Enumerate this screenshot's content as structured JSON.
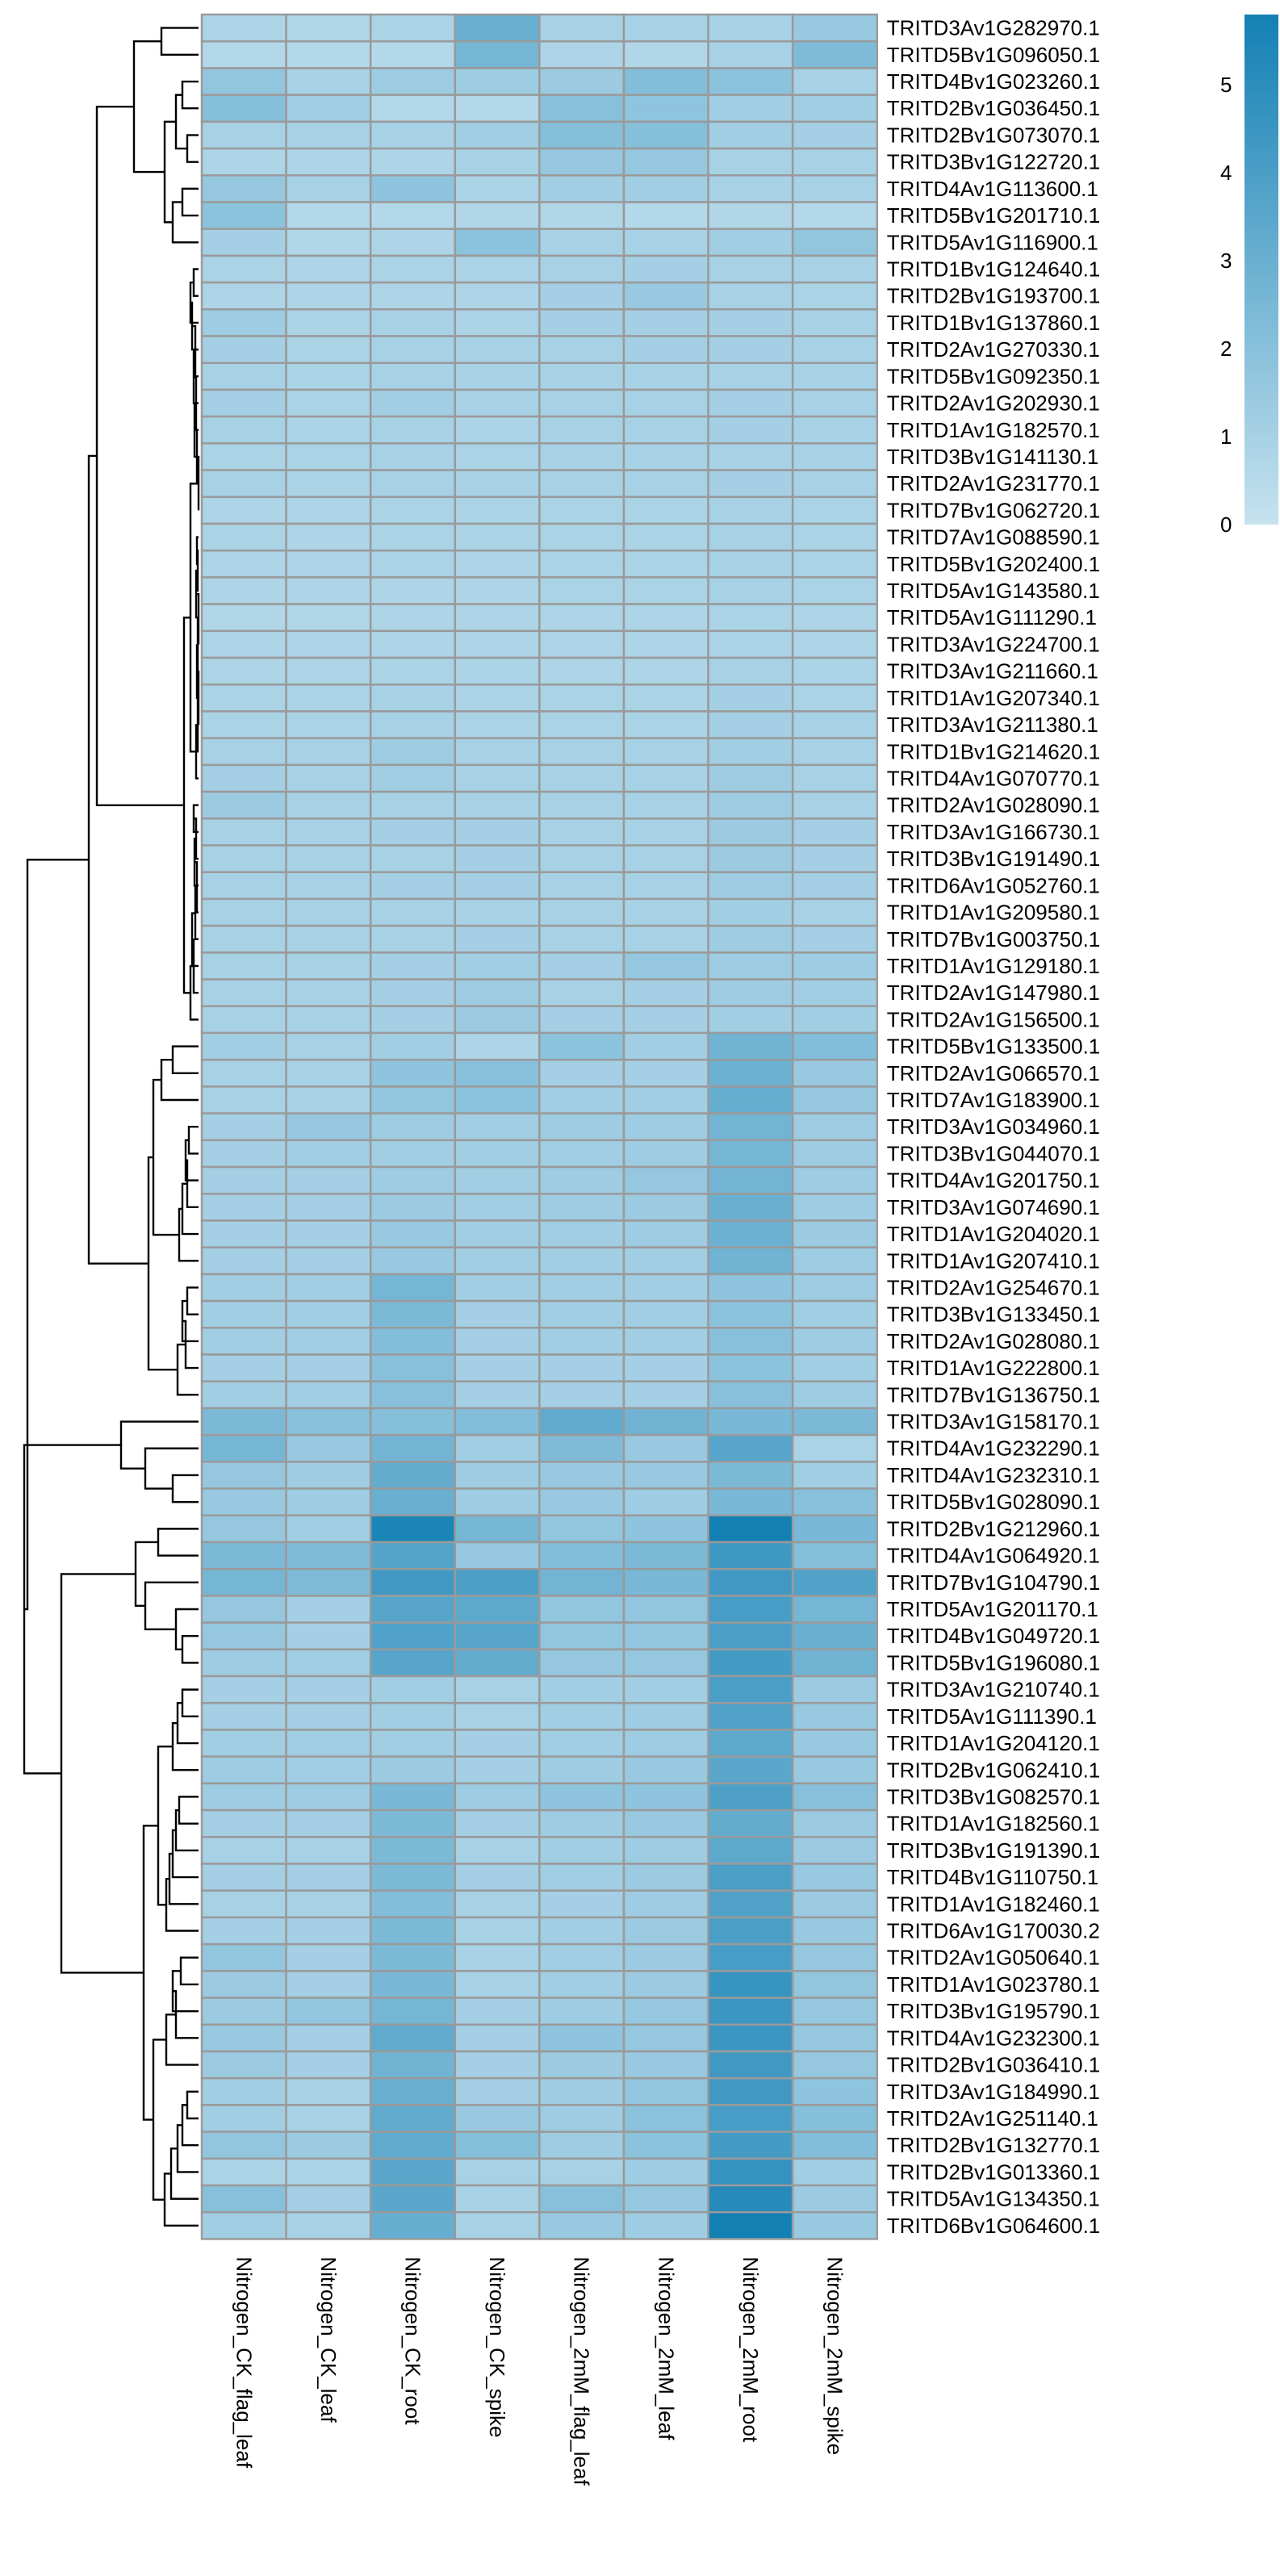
{
  "chart_data": {
    "type": "heatmap",
    "title": "",
    "columns": [
      "Nitrogen_CK_flag_leaf",
      "Nitrogen_CK_leaf",
      "Nitrogen_CK_root",
      "Nitrogen_CK_spike",
      "Nitrogen_2mM_flag_leaf",
      "Nitrogen_2mM_leaf",
      "Nitrogen_2mM_root",
      "Nitrogen_2mM_spike"
    ],
    "rows": [
      "TRITD3Av1G282970.1",
      "TRITD5Bv1G096050.1",
      "TRITD4Bv1G023260.1",
      "TRITD2Bv1G036450.1",
      "TRITD2Bv1G073070.1",
      "TRITD3Bv1G122720.1",
      "TRITD4Av1G113600.1",
      "TRITD5Bv1G201710.1",
      "TRITD5Av1G116900.1",
      "TRITD1Bv1G124640.1",
      "TRITD2Bv1G193700.1",
      "TRITD1Bv1G137860.1",
      "TRITD2Av1G270330.1",
      "TRITD5Bv1G092350.1",
      "TRITD2Av1G202930.1",
      "TRITD1Av1G182570.1",
      "TRITD3Bv1G141130.1",
      "TRITD2Av1G231770.1",
      "TRITD7Bv1G062720.1",
      "TRITD7Av1G088590.1",
      "TRITD5Bv1G202400.1",
      "TRITD5Av1G143580.1",
      "TRITD5Av1G111290.1",
      "TRITD3Av1G224700.1",
      "TRITD3Av1G211660.1",
      "TRITD1Av1G207340.1",
      "TRITD3Av1G211380.1",
      "TRITD1Bv1G214620.1",
      "TRITD4Av1G070770.1",
      "TRITD2Av1G028090.1",
      "TRITD3Av1G166730.1",
      "TRITD3Bv1G191490.1",
      "TRITD6Av1G052760.1",
      "TRITD1Av1G209580.1",
      "TRITD7Bv1G003750.1",
      "TRITD1Av1G129180.1",
      "TRITD2Av1G147980.1",
      "TRITD2Av1G156500.1",
      "TRITD5Bv1G133500.1",
      "TRITD2Av1G066570.1",
      "TRITD7Av1G183900.1",
      "TRITD3Av1G034960.1",
      "TRITD3Bv1G044070.1",
      "TRITD4Av1G201750.1",
      "TRITD3Av1G074690.1",
      "TRITD1Av1G204020.1",
      "TRITD1Av1G207410.1",
      "TRITD2Av1G254670.1",
      "TRITD3Bv1G133450.1",
      "TRITD2Av1G028080.1",
      "TRITD1Av1G222800.1",
      "TRITD7Bv1G136750.1",
      "TRITD3Av1G158170.1",
      "TRITD4Av1G232290.1",
      "TRITD4Av1G232310.1",
      "TRITD5Bv1G028090.1",
      "TRITD2Bv1G212960.1",
      "TRITD4Av1G064920.1",
      "TRITD7Bv1G104790.1",
      "TRITD5Av1G201170.1",
      "TRITD4Bv1G049720.1",
      "TRITD5Bv1G196080.1",
      "TRITD3Av1G210740.1",
      "TRITD5Av1G111390.1",
      "TRITD1Av1G204120.1",
      "TRITD2Bv1G062410.1",
      "TRITD3Bv1G082570.1",
      "TRITD1Av1G182560.1",
      "TRITD3Bv1G191390.1",
      "TRITD4Bv1G110750.1",
      "TRITD1Av1G182460.1",
      "TRITD6Av1G170030.2",
      "TRITD2Av1G050640.1",
      "TRITD1Av1G023780.1",
      "TRITD3Bv1G195790.1",
      "TRITD4Av1G232300.1",
      "TRITD2Bv1G036410.1",
      "TRITD3Av1G184990.1",
      "TRITD2Av1G251140.1",
      "TRITD2Bv1G132770.1",
      "TRITD2Bv1G013360.1",
      "TRITD5Av1G134350.1",
      "TRITD6Bv1G064600.1"
    ],
    "values": [
      [
        0.8,
        0.7,
        0.9,
        3.0,
        1.0,
        1.0,
        1.0,
        1.5
      ],
      [
        0.6,
        0.6,
        0.6,
        2.6,
        0.8,
        0.7,
        1.0,
        2.3
      ],
      [
        1.7,
        1.0,
        1.3,
        1.3,
        1.4,
        2.2,
        1.9,
        1.0
      ],
      [
        2.1,
        1.2,
        0.6,
        0.6,
        2.0,
        1.8,
        1.2,
        1.2
      ],
      [
        1.0,
        1.0,
        1.0,
        1.2,
        2.1,
        2.1,
        1.2,
        1.1
      ],
      [
        0.8,
        0.8,
        0.8,
        1.0,
        1.6,
        1.6,
        1.0,
        1.0
      ],
      [
        1.6,
        1.0,
        1.8,
        0.9,
        1.2,
        1.2,
        1.0,
        1.0
      ],
      [
        1.9,
        0.6,
        0.6,
        0.7,
        0.7,
        0.6,
        0.7,
        0.6
      ],
      [
        1.1,
        0.7,
        0.8,
        1.9,
        1.0,
        1.0,
        1.2,
        1.7
      ],
      [
        0.9,
        0.8,
        0.9,
        0.9,
        1.0,
        1.1,
        1.0,
        1.0
      ],
      [
        0.8,
        0.8,
        0.8,
        0.8,
        1.1,
        1.5,
        1.0,
        0.9
      ],
      [
        1.3,
        0.9,
        1.0,
        0.9,
        1.1,
        1.1,
        1.1,
        1.0
      ],
      [
        1.1,
        0.9,
        1.0,
        1.0,
        1.0,
        1.1,
        1.1,
        1.0
      ],
      [
        1.0,
        0.9,
        1.0,
        1.0,
        1.0,
        1.0,
        1.0,
        1.0
      ],
      [
        1.1,
        0.9,
        1.2,
        1.0,
        1.0,
        1.0,
        1.1,
        1.0
      ],
      [
        1.0,
        0.9,
        1.0,
        0.9,
        1.0,
        1.0,
        1.1,
        1.0
      ],
      [
        0.9,
        0.9,
        1.0,
        0.9,
        1.0,
        1.0,
        1.0,
        1.0
      ],
      [
        1.0,
        0.9,
        1.0,
        1.0,
        1.0,
        1.0,
        1.1,
        1.0
      ],
      [
        0.8,
        0.8,
        0.9,
        0.9,
        0.9,
        0.9,
        1.0,
        0.9
      ],
      [
        0.9,
        0.8,
        0.9,
        0.9,
        0.9,
        0.9,
        1.0,
        0.9
      ],
      [
        0.8,
        0.8,
        0.9,
        0.8,
        0.9,
        0.9,
        1.0,
        0.9
      ],
      [
        0.8,
        0.8,
        0.8,
        0.8,
        0.9,
        0.9,
        1.0,
        0.9
      ],
      [
        0.7,
        0.7,
        0.8,
        0.8,
        0.8,
        0.8,
        0.9,
        0.8
      ],
      [
        0.8,
        0.8,
        0.8,
        0.8,
        0.8,
        0.8,
        0.9,
        0.8
      ],
      [
        0.8,
        0.8,
        0.9,
        0.9,
        0.8,
        0.8,
        1.0,
        0.9
      ],
      [
        0.9,
        0.9,
        1.0,
        0.9,
        0.9,
        0.9,
        1.1,
        0.9
      ],
      [
        0.9,
        0.9,
        1.0,
        0.9,
        0.9,
        0.9,
        1.1,
        1.0
      ],
      [
        1.0,
        1.0,
        1.3,
        1.0,
        1.0,
        1.0,
        1.2,
        1.0
      ],
      [
        1.1,
        1.0,
        1.2,
        1.0,
        1.0,
        1.0,
        1.3,
        1.0
      ],
      [
        1.4,
        1.0,
        1.0,
        1.0,
        1.0,
        1.0,
        1.3,
        1.0
      ],
      [
        1.0,
        1.0,
        1.1,
        1.1,
        1.0,
        1.0,
        1.4,
        1.1
      ],
      [
        1.0,
        1.0,
        1.0,
        1.1,
        1.0,
        1.0,
        1.4,
        1.1
      ],
      [
        1.0,
        1.0,
        1.1,
        1.1,
        1.0,
        1.0,
        1.3,
        1.1
      ],
      [
        1.0,
        1.0,
        1.0,
        1.0,
        1.0,
        1.0,
        1.2,
        1.0
      ],
      [
        1.0,
        1.0,
        1.0,
        1.1,
        1.0,
        1.0,
        1.3,
        1.1
      ],
      [
        1.0,
        1.0,
        1.1,
        1.2,
        1.1,
        1.6,
        1.3,
        1.3
      ],
      [
        1.0,
        1.0,
        1.1,
        1.3,
        1.0,
        1.1,
        1.3,
        1.2
      ],
      [
        1.0,
        1.0,
        1.1,
        1.4,
        1.1,
        1.1,
        1.2,
        1.2
      ],
      [
        1.2,
        1.0,
        1.2,
        0.8,
        1.9,
        1.2,
        2.8,
        2.2
      ],
      [
        1.0,
        1.0,
        1.8,
        2.0,
        1.1,
        1.1,
        2.9,
        1.5
      ],
      [
        1.0,
        1.0,
        1.7,
        1.9,
        1.2,
        1.2,
        3.1,
        1.6
      ],
      [
        1.1,
        1.6,
        1.3,
        1.2,
        1.3,
        1.3,
        2.7,
        1.3
      ],
      [
        1.1,
        1.2,
        1.2,
        1.2,
        1.2,
        1.3,
        2.6,
        1.3
      ],
      [
        1.1,
        1.1,
        1.3,
        1.2,
        1.3,
        1.6,
        2.7,
        1.3
      ],
      [
        1.1,
        1.1,
        1.4,
        1.2,
        1.3,
        1.4,
        3.0,
        1.3
      ],
      [
        1.1,
        1.1,
        1.5,
        1.2,
        1.2,
        1.3,
        2.9,
        1.4
      ],
      [
        1.1,
        1.1,
        1.5,
        1.2,
        1.2,
        1.2,
        2.8,
        1.3
      ],
      [
        1.2,
        1.2,
        2.6,
        1.2,
        1.2,
        1.2,
        1.8,
        1.3
      ],
      [
        1.2,
        1.2,
        2.4,
        1.1,
        1.2,
        1.2,
        1.9,
        1.2
      ],
      [
        1.2,
        1.2,
        2.2,
        1.1,
        1.2,
        1.2,
        2.0,
        1.3
      ],
      [
        1.1,
        1.1,
        2.0,
        1.1,
        1.1,
        1.1,
        1.9,
        1.2
      ],
      [
        1.2,
        1.2,
        2.0,
        1.1,
        1.1,
        1.1,
        2.0,
        1.3
      ],
      [
        2.4,
        2.0,
        2.1,
        2.2,
        3.3,
        2.8,
        2.5,
        2.4
      ],
      [
        2.6,
        1.5,
        2.7,
        1.2,
        2.3,
        1.5,
        3.6,
        0.9
      ],
      [
        1.6,
        1.3,
        3.2,
        1.3,
        1.5,
        1.5,
        2.4,
        1.2
      ],
      [
        1.5,
        1.3,
        3.0,
        1.3,
        1.5,
        1.3,
        2.5,
        2.0
      ],
      [
        1.6,
        1.2,
        5.5,
        2.6,
        1.7,
        1.8,
        5.8,
        2.5
      ],
      [
        2.4,
        2.3,
        3.7,
        1.6,
        2.2,
        2.4,
        4.4,
        2.1
      ],
      [
        2.6,
        2.3,
        4.3,
        4.0,
        2.7,
        2.5,
        4.3,
        3.8
      ],
      [
        1.6,
        1.1,
        3.6,
        3.4,
        1.7,
        1.7,
        4.1,
        2.6
      ],
      [
        1.6,
        1.1,
        3.8,
        3.6,
        1.7,
        1.7,
        4.0,
        3.0
      ],
      [
        1.3,
        1.2,
        3.6,
        3.2,
        1.6,
        1.6,
        4.2,
        2.8
      ],
      [
        1.1,
        1.1,
        1.2,
        1.0,
        1.2,
        1.2,
        4.0,
        1.4
      ],
      [
        1.1,
        1.1,
        1.2,
        1.0,
        1.2,
        1.3,
        3.8,
        1.5
      ],
      [
        1.2,
        1.2,
        1.2,
        1.1,
        1.2,
        1.3,
        3.4,
        1.5
      ],
      [
        1.3,
        1.2,
        1.4,
        1.1,
        1.3,
        1.5,
        3.5,
        1.5
      ],
      [
        1.3,
        1.3,
        2.5,
        1.3,
        1.8,
        1.8,
        3.9,
        2.0
      ],
      [
        1.1,
        1.1,
        2.4,
        1.1,
        1.3,
        1.5,
        3.2,
        1.4
      ],
      [
        1.0,
        1.0,
        2.4,
        1.0,
        1.2,
        1.3,
        3.4,
        1.4
      ],
      [
        1.1,
        1.1,
        2.4,
        1.1,
        1.2,
        1.4,
        4.0,
        1.5
      ],
      [
        1.0,
        1.0,
        2.2,
        1.0,
        1.1,
        1.3,
        3.8,
        1.4
      ],
      [
        1.1,
        1.1,
        2.4,
        1.0,
        1.2,
        1.4,
        4.0,
        1.5
      ],
      [
        1.7,
        1.1,
        2.4,
        1.0,
        1.2,
        1.4,
        4.1,
        1.6
      ],
      [
        1.4,
        1.1,
        2.5,
        1.0,
        1.2,
        1.4,
        4.6,
        1.7
      ],
      [
        1.4,
        1.7,
        2.6,
        1.1,
        1.3,
        1.6,
        4.5,
        1.6
      ],
      [
        1.5,
        1.1,
        3.3,
        1.1,
        1.8,
        1.6,
        4.5,
        1.6
      ],
      [
        1.4,
        1.1,
        2.8,
        1.1,
        1.4,
        1.5,
        4.3,
        1.6
      ],
      [
        1.2,
        1.0,
        3.0,
        1.1,
        1.3,
        1.7,
        4.3,
        1.8
      ],
      [
        1.2,
        1.0,
        3.3,
        1.5,
        1.3,
        1.9,
        4.1,
        2.1
      ],
      [
        1.7,
        1.4,
        3.3,
        2.1,
        1.3,
        1.9,
        4.2,
        2.2
      ],
      [
        0.9,
        0.9,
        3.5,
        1.0,
        1.0,
        1.3,
        4.7,
        1.2
      ],
      [
        2.0,
        1.1,
        3.5,
        1.0,
        2.0,
        1.6,
        5.2,
        1.4
      ],
      [
        1.2,
        1.0,
        3.1,
        1.0,
        1.5,
        1.3,
        5.8,
        1.5
      ]
    ],
    "legend": {
      "position": "top-right",
      "min": 0,
      "max": 5.8,
      "ticks": [
        "0",
        "1",
        "2",
        "3",
        "4",
        "5"
      ],
      "colors": [
        "#c6e2ef",
        "#1380b4"
      ]
    },
    "dendrogram": "rows",
    "grid": true,
    "cell_border_color": "#9a9a9a"
  }
}
